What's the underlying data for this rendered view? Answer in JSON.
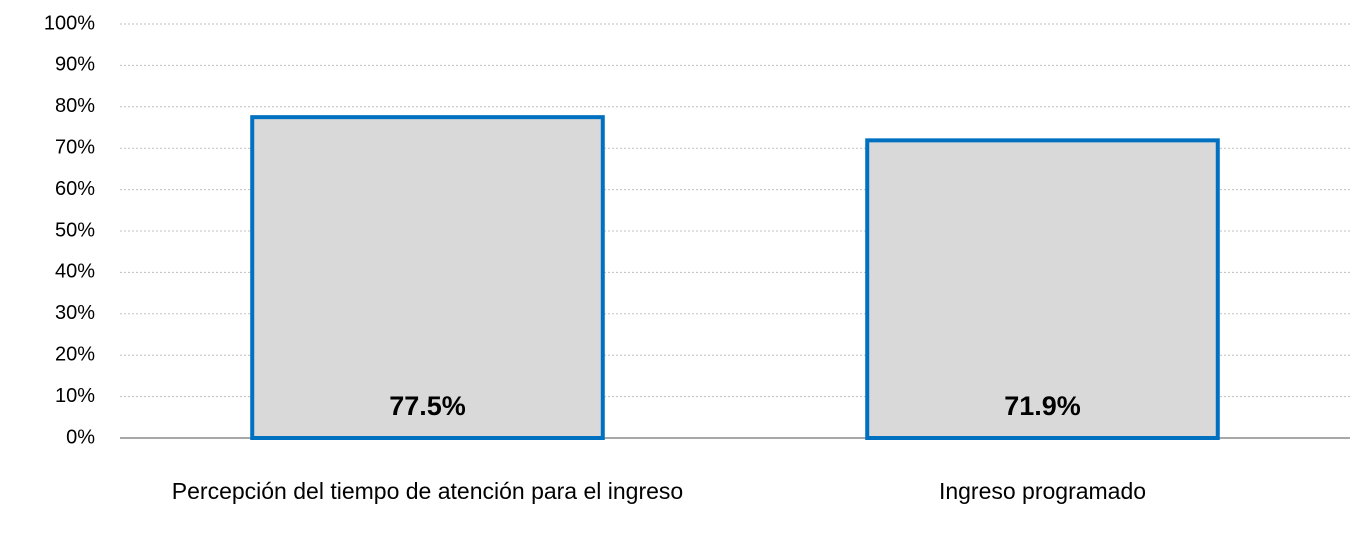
{
  "chart_data": {
    "type": "bar",
    "categories": [
      "Percepción del tiempo de atención para el ingreso",
      "Ingreso programado"
    ],
    "values": [
      77.5,
      71.9
    ],
    "value_labels": [
      "77.5%",
      "71.9%"
    ],
    "color": "#d9d9d9",
    "edge_color": "#0070c0",
    "ylim": [
      0,
      100
    ],
    "yticks": [
      {
        "value": 0,
        "label": "0%"
      },
      {
        "value": 10,
        "label": "10%"
      },
      {
        "value": 20,
        "label": "20%"
      },
      {
        "value": 30,
        "label": "30%"
      },
      {
        "value": 40,
        "label": "40%"
      },
      {
        "value": 50,
        "label": "50%"
      },
      {
        "value": 60,
        "label": "60%"
      },
      {
        "value": 70,
        "label": "70%"
      },
      {
        "value": 80,
        "label": "80%"
      },
      {
        "value": 90,
        "label": "90%"
      },
      {
        "value": 100,
        "label": "100%"
      }
    ],
    "grid": true
  }
}
